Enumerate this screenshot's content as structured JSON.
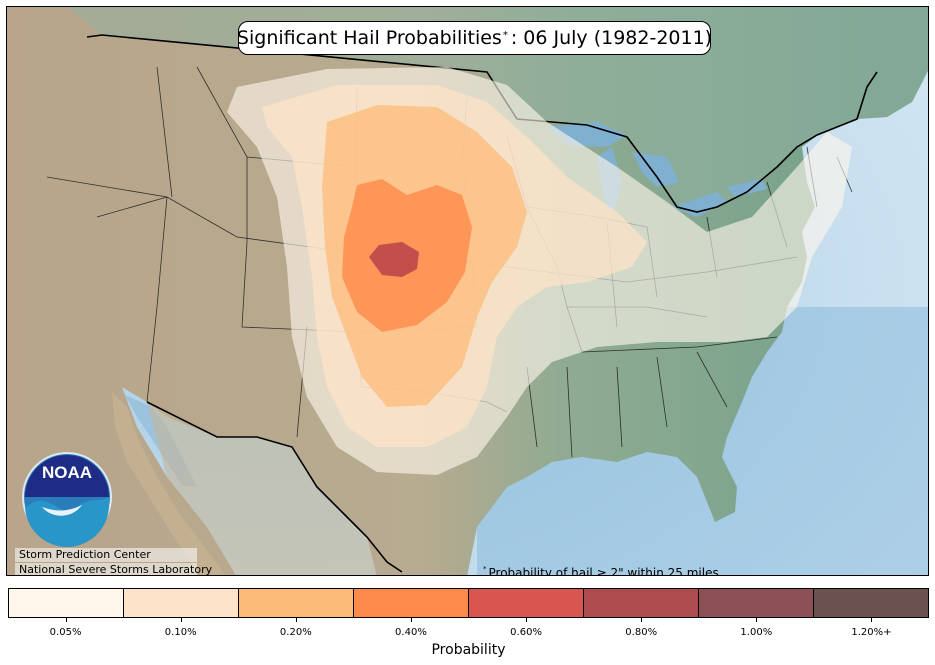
{
  "map": {
    "title_text": "Significant Hail Probabilities",
    "title_mark": "*",
    "title_date": ": 06 July (1982-2011)",
    "logo_text": "NOAA",
    "org_line_1": "Storm Prediction Center",
    "org_line_2": "National Severe Storms Laboratory",
    "footnote_mark": "*",
    "footnote_text": "Probability of hail ≥ 2\" within 25 miles",
    "colors": {
      "ocean": "#8fbddc",
      "ocean_far": "#b9d8ec",
      "land_west": "#b7a58c",
      "land_east": "#79a590",
      "canada": "#8fb0a0",
      "mexico": "#c2b090"
    }
  },
  "legend": {
    "title": "Probability",
    "levels": [
      {
        "label": "0.05%",
        "color": "#fff7ec"
      },
      {
        "label": "0.10%",
        "color": "#fde3c8"
      },
      {
        "label": "0.20%",
        "color": "#fdbb7a"
      },
      {
        "label": "0.40%",
        "color": "#fc8a4a"
      },
      {
        "label": "0.60%",
        "color": "#d95550"
      },
      {
        "label": "0.80%",
        "color": "#ae4b4e"
      },
      {
        "label": "1.00%",
        "color": "#8c5055"
      },
      {
        "label": "1.20%+",
        "color": "#6b5250"
      }
    ]
  }
}
